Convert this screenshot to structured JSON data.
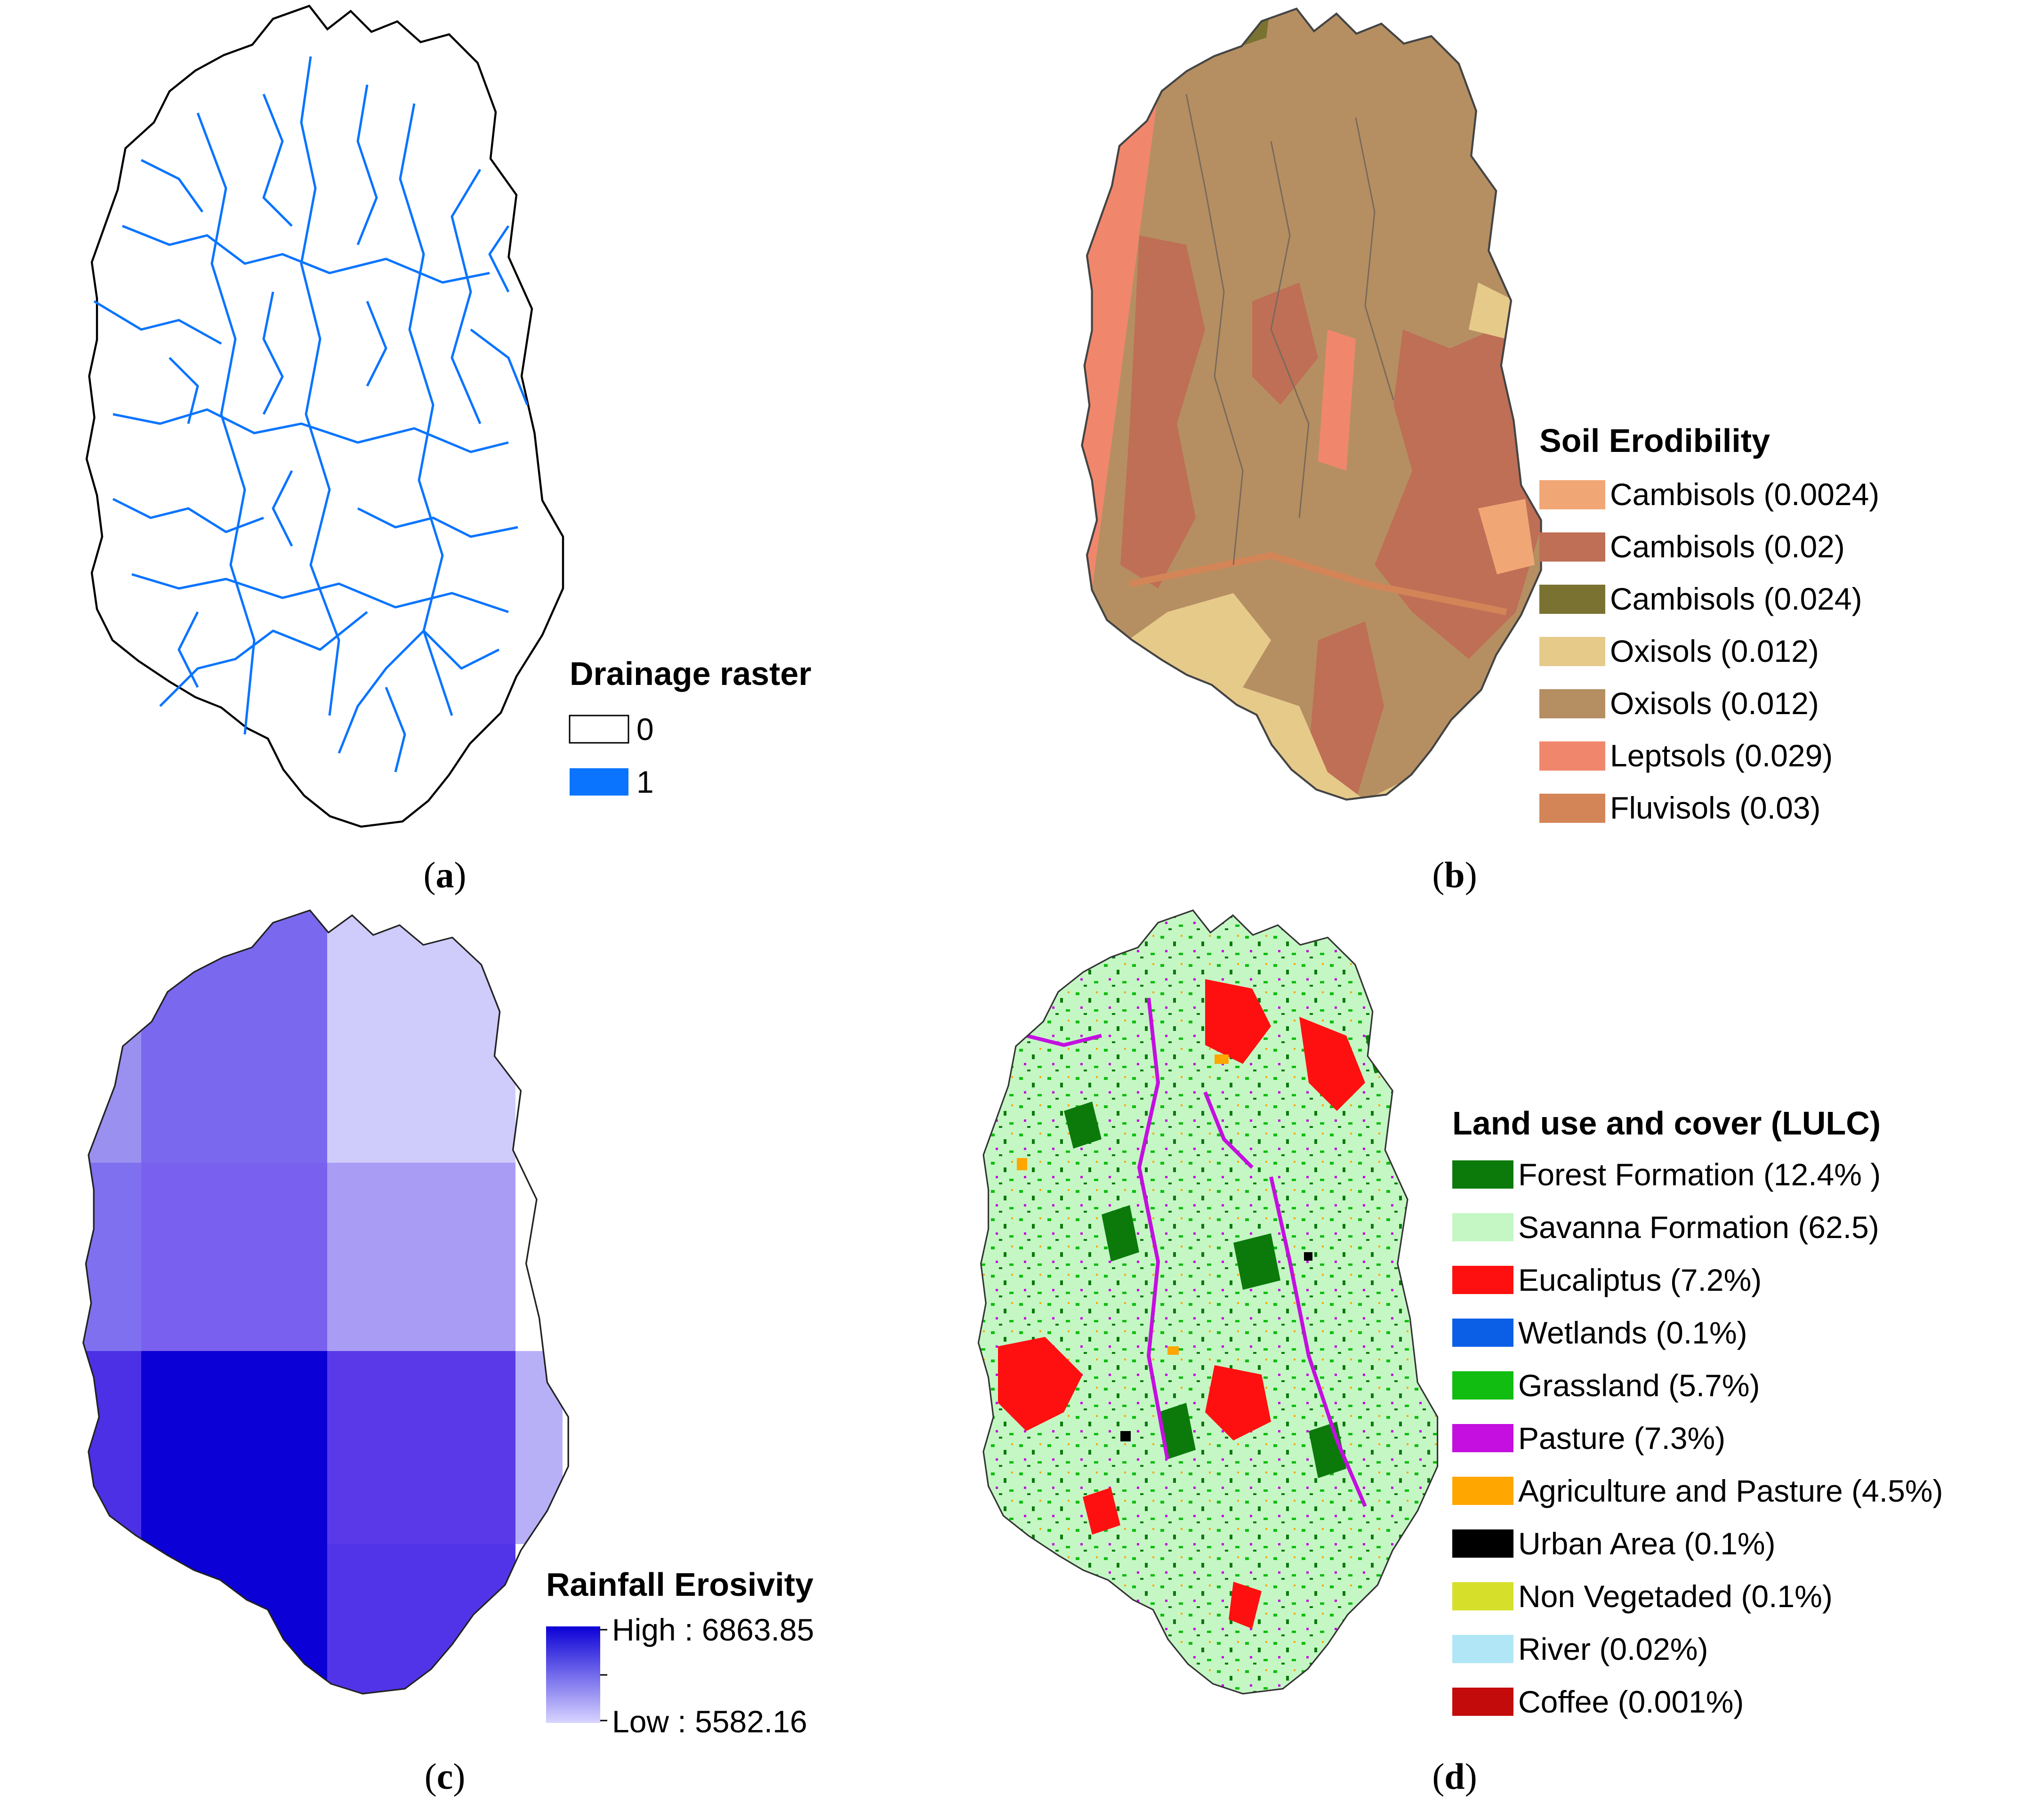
{
  "panels": {
    "a": {
      "letter": "a",
      "legend_title": "Drainage raster",
      "legend_items": [
        {
          "label": "0",
          "color": "#ffffff"
        },
        {
          "label": "1",
          "color": "#0a74ff"
        }
      ]
    },
    "b": {
      "letter": "b",
      "legend_title": "Soil Erodibility",
      "legend_items": [
        {
          "label": "Cambisols (0.0024)",
          "color": "#f1a775"
        },
        {
          "label": "Cambisols (0.02)",
          "color": "#bf6f56"
        },
        {
          "label": "Cambisols (0.024)",
          "color": "#7a7231"
        },
        {
          "label": "Oxisols (0.012)",
          "color": "#e6ca8a"
        },
        {
          "label": "Oxisols (0.012)",
          "color": "#b58f62"
        },
        {
          "label": "Leptsols (0.029)",
          "color": "#f0876d"
        },
        {
          "label": "Fluvisols (0.03)",
          "color": "#d48557"
        }
      ]
    },
    "c": {
      "letter": "c",
      "legend_title": "Rainfall Erosivity",
      "high_label": "High : 6863.85",
      "low_label": "Low : 5582.16",
      "high_color": "#0b00d6",
      "low_color": "#d8d4ff"
    },
    "d": {
      "letter": "d",
      "legend_title": "Land use and cover (LULC)",
      "legend_items": [
        {
          "label": "Forest Formation (12.4% )",
          "color": "#0b7a0b"
        },
        {
          "label": "Savanna Formation (62.5)",
          "color": "#c4f7c4"
        },
        {
          "label": "Eucaliptus (7.2%)",
          "color": "#ff1010"
        },
        {
          "label": "Wetlands (0.1%)",
          "color": "#0b5fe6"
        },
        {
          "label": "Grassland (5.7%)",
          "color": "#10bd10"
        },
        {
          "label": "Pasture (7.3%)",
          "color": "#c40fe0"
        },
        {
          "label": "Agriculture and Pasture (4.5%)",
          "color": "#ffa600"
        },
        {
          "label": "Urban Area (0.1%)",
          "color": "#000000"
        },
        {
          "label": "Non Vegetaded (0.1%)",
          "color": "#d6e02a"
        },
        {
          "label": "River (0.02%)",
          "color": "#b0e6f5"
        },
        {
          "label": "Coffee (0.001%)",
          "color": "#c40b0b"
        }
      ]
    }
  }
}
